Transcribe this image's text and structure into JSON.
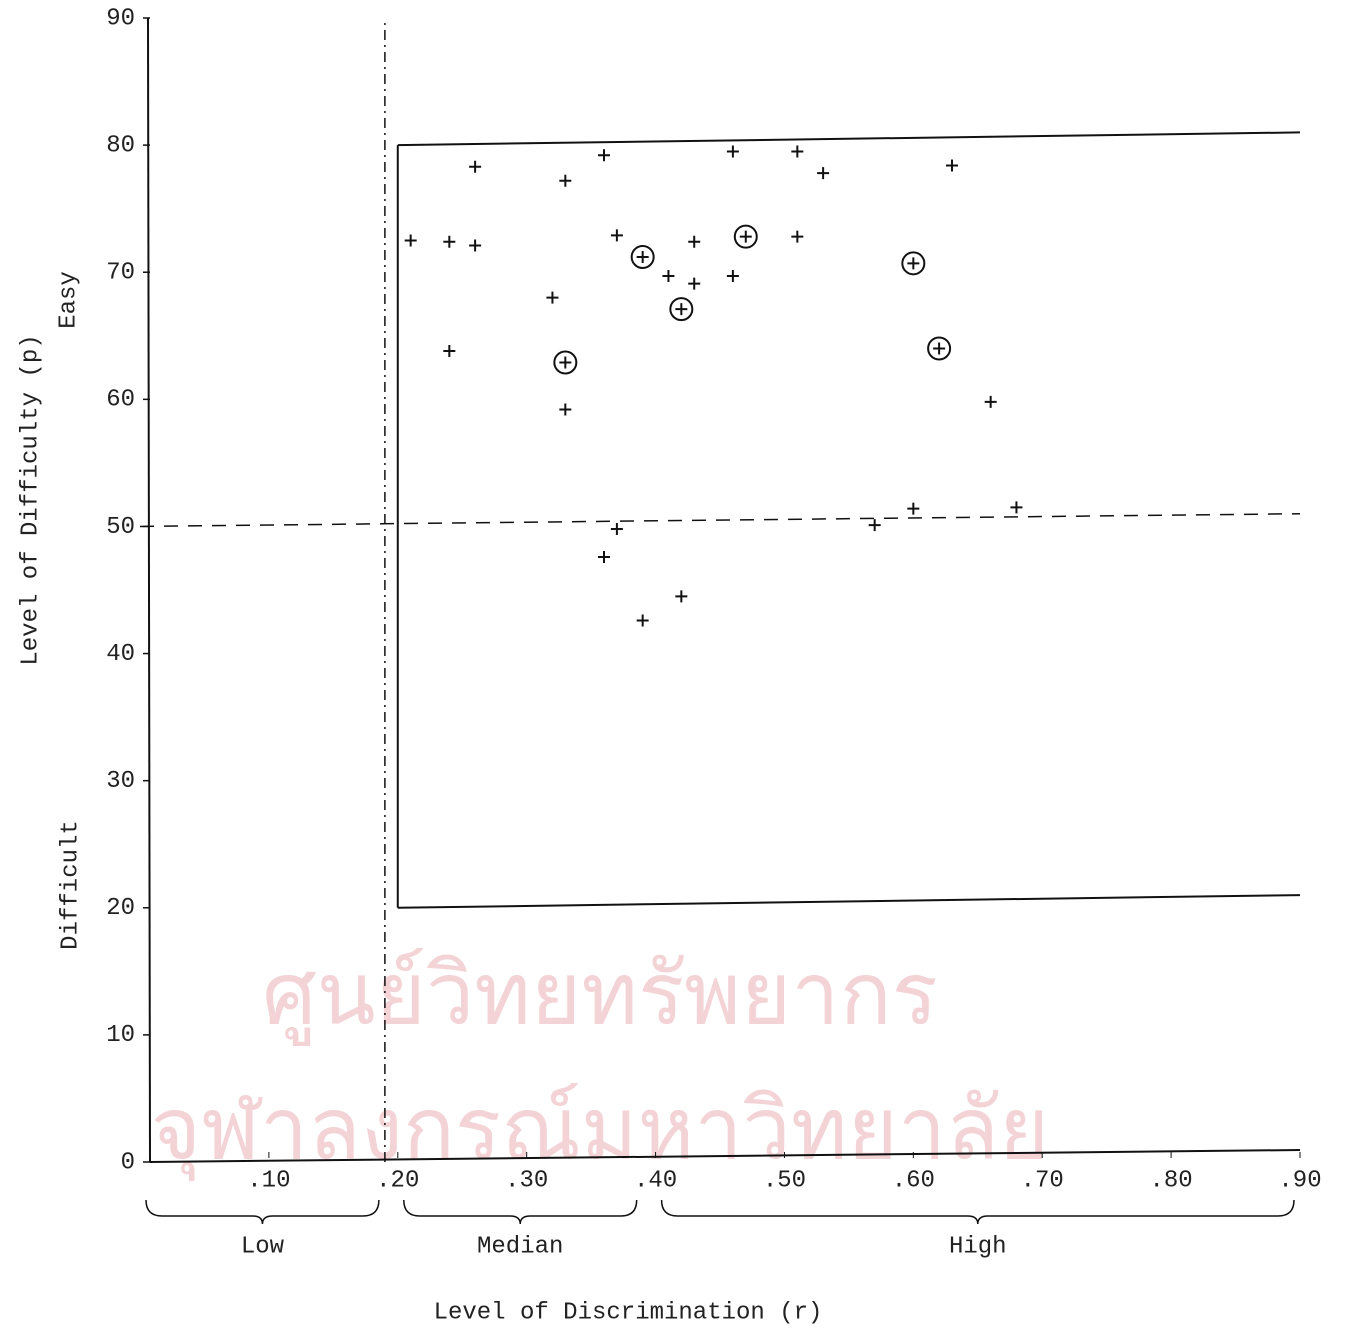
{
  "chart_data": {
    "type": "scatter",
    "x_label": "Level of Discrimination (r)",
    "y_label": "Level of Difficulty (p)",
    "annotations": [
      "Easy",
      "Difficult"
    ],
    "xlim": [
      0,
      0.9
    ],
    "ylim": [
      0,
      90
    ],
    "xticks": [
      {
        "value": 0.1,
        "label": ".10"
      },
      {
        "value": 0.2,
        "label": ".20"
      },
      {
        "value": 0.3,
        "label": ".30"
      },
      {
        "value": 0.4,
        "label": ".40"
      },
      {
        "value": 0.5,
        "label": ".50"
      },
      {
        "value": 0.6,
        "label": ".60"
      },
      {
        "value": 0.7,
        "label": ".70"
      },
      {
        "value": 0.8,
        "label": ".80"
      },
      {
        "value": 0.9,
        "label": ".90"
      }
    ],
    "yticks": [
      0,
      10,
      20,
      30,
      40,
      50,
      60,
      70,
      80,
      90
    ],
    "ranges": [
      {
        "label": "Low",
        "from": 0,
        "to": 0.19
      },
      {
        "label": "Median",
        "from": 0.2,
        "to": 0.39
      },
      {
        "label": "High",
        "from": 0.4,
        "to": 0.9
      }
    ],
    "reference_lines": [
      {
        "x": [
          0.19,
          0.19
        ],
        "y": [
          0,
          90
        ],
        "style": "dashdot"
      },
      {
        "x": [
          0,
          0.9
        ],
        "y": [
          50,
          51
        ],
        "style": "dashed"
      },
      {
        "x": [
          0.2,
          0.9
        ],
        "y": [
          80,
          81
        ],
        "style": "solid"
      },
      {
        "x": [
          0.2,
          0.9
        ],
        "y": [
          20,
          21
        ],
        "style": "solid"
      },
      {
        "x": [
          0.2,
          0.2
        ],
        "y": [
          20,
          80
        ],
        "style": "solid"
      }
    ],
    "series": [
      {
        "marker": "plus",
        "color": "#111111",
        "x": [
          0.21,
          0.24,
          0.26,
          0.26,
          0.24,
          0.32,
          0.33,
          0.36,
          0.33,
          0.37,
          0.41,
          0.43,
          0.43,
          0.46,
          0.46,
          0.51,
          0.53,
          0.51,
          0.63,
          0.66,
          0.37,
          0.36,
          0.42,
          0.39,
          0.57,
          0.6,
          0.68
        ],
        "y": [
          72.5,
          72.4,
          72.1,
          78.3,
          63.8,
          68.0,
          77.2,
          79.2,
          59.2,
          72.9,
          69.7,
          72.4,
          69.1,
          79.5,
          69.7,
          79.5,
          77.8,
          72.8,
          78.4,
          59.8,
          49.8,
          47.6,
          44.5,
          42.6,
          50.1,
          51.4,
          51.5
        ]
      },
      {
        "marker": "circled-plus",
        "color": "#111111",
        "x": [
          0.33,
          0.39,
          0.42,
          0.47,
          0.6,
          0.62
        ],
        "y": [
          62.9,
          71.2,
          67.1,
          72.8,
          70.7,
          64.0
        ]
      }
    ],
    "watermark": [
      "ศูนย์วิทยทรัพยากร",
      "จุฬาลงกรณ์มหาวิทยาลัย"
    ]
  }
}
